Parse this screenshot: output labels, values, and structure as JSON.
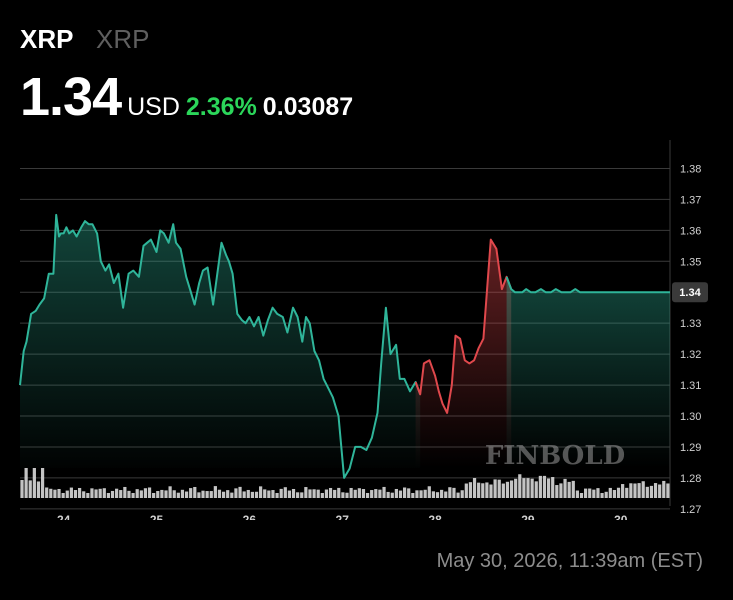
{
  "header": {
    "symbol": "XRP",
    "symbol_secondary": "XRP",
    "price": "1.34",
    "currency": "USD",
    "change_percent": "2.36%",
    "change_abs": "0.03087"
  },
  "watermark": "FINBOLD",
  "timestamp": "May 30, 2026, 11:39am (EST)",
  "colors": {
    "up": "#2fb59a",
    "down": "#e0484c",
    "gain_text": "#2bd65a",
    "grid": "#3a3a3a",
    "volume": "#d9d9d9"
  },
  "chart_data": {
    "type": "line",
    "x_tick_labels": [
      "24",
      "25",
      "26",
      "27",
      "28",
      "29",
      "30"
    ],
    "x_tick_values": [
      24,
      25,
      26,
      27,
      28,
      29,
      30
    ],
    "xlim": [
      23.53,
      30.53
    ],
    "ylim": [
      1.2735,
      1.385
    ],
    "y_ticks": [
      1.38,
      1.37,
      1.36,
      1.35,
      1.34,
      1.33,
      1.32,
      1.31,
      1.3,
      1.29,
      1.28,
      1.27
    ],
    "current_price_label": "1.34",
    "current_price": 1.34,
    "grid": true,
    "series": [
      {
        "x": [
          23.53,
          23.57,
          23.6,
          23.65,
          23.7,
          23.74,
          23.79,
          23.84,
          23.89,
          23.92,
          23.95,
          23.97,
          24.0,
          24.03,
          24.06,
          24.1,
          24.14,
          24.19,
          24.23,
          24.27,
          24.31,
          24.36,
          24.4,
          24.45,
          24.49,
          24.54,
          24.59,
          24.64,
          24.7,
          24.75,
          24.81,
          24.86,
          24.9,
          24.94,
          25.0,
          25.04,
          25.08,
          25.13,
          25.18,
          25.21,
          25.26,
          25.32,
          25.37,
          25.41,
          25.46,
          25.5,
          25.55,
          25.61,
          25.65,
          25.7,
          25.75,
          25.78,
          25.82,
          25.87,
          25.92,
          25.96,
          26.0,
          26.05,
          26.1,
          26.15,
          26.2,
          26.25,
          26.3,
          26.36,
          26.41,
          26.47,
          26.52,
          26.57,
          26.61,
          26.65,
          26.7,
          26.75,
          26.8,
          26.85,
          26.9,
          26.96,
          27.02,
          27.08,
          27.14,
          27.2,
          27.26,
          27.32,
          27.38,
          27.42,
          27.47,
          27.52,
          27.58,
          27.62,
          27.67,
          27.73,
          27.79,
          27.84,
          27.88,
          27.94,
          28.0,
          28.04,
          28.08,
          28.13,
          28.18,
          28.22,
          28.27,
          28.32,
          28.37,
          28.42,
          28.47,
          28.52,
          28.56,
          28.6,
          28.66,
          28.72,
          28.77,
          28.82,
          28.86,
          28.9,
          28.94,
          28.98,
          29.03,
          29.08,
          29.14,
          29.19,
          29.25,
          29.3,
          29.36,
          29.41,
          29.46,
          29.51,
          29.56,
          29.61,
          29.65,
          29.69,
          29.74,
          29.79,
          29.83,
          29.87,
          29.92,
          29.97,
          30.02,
          30.07,
          30.11,
          30.16,
          30.2,
          30.24,
          30.29,
          30.33,
          30.38,
          30.43,
          30.48,
          30.53
        ],
        "y": [
          1.31,
          1.321,
          1.324,
          1.333,
          1.334,
          1.336,
          1.338,
          1.346,
          1.346,
          1.365,
          1.358,
          1.359,
          1.359,
          1.361,
          1.359,
          1.36,
          1.358,
          1.361,
          1.363,
          1.362,
          1.362,
          1.359,
          1.35,
          1.347,
          1.349,
          1.343,
          1.346,
          1.335,
          1.346,
          1.347,
          1.345,
          1.355,
          1.356,
          1.357,
          1.353,
          1.36,
          1.359,
          1.356,
          1.362,
          1.356,
          1.354,
          1.345,
          1.34,
          1.336,
          1.343,
          1.347,
          1.348,
          1.336,
          1.345,
          1.356,
          1.352,
          1.35,
          1.346,
          1.333,
          1.331,
          1.33,
          1.332,
          1.329,
          1.332,
          1.326,
          1.331,
          1.335,
          1.333,
          1.332,
          1.327,
          1.335,
          1.332,
          1.324,
          1.332,
          1.33,
          1.321,
          1.318,
          1.312,
          1.309,
          1.306,
          1.3,
          1.28,
          1.283,
          1.29,
          1.29,
          1.289,
          1.293,
          1.301,
          1.317,
          1.335,
          1.32,
          1.323,
          1.312,
          1.312,
          1.308,
          1.311,
          1.307,
          1.317,
          1.318,
          1.313,
          1.308,
          1.304,
          1.301,
          1.31,
          1.326,
          1.325,
          1.318,
          1.317,
          1.318,
          1.322,
          1.325,
          1.341,
          1.357,
          1.354,
          1.341,
          1.345,
          1.341,
          1.34,
          1.34,
          1.34,
          1.341,
          1.34,
          1.34,
          1.341,
          1.34,
          1.34,
          1.341,
          1.34,
          1.34,
          1.34,
          1.341,
          1.34,
          1.34,
          1.34,
          1.34,
          1.34,
          1.34,
          1.34,
          1.34,
          1.34,
          1.34,
          1.34,
          1.34,
          1.34,
          1.34,
          1.34,
          1.34,
          1.34,
          1.34,
          1.34,
          1.34,
          1.34,
          1.34
        ]
      }
    ]
  }
}
